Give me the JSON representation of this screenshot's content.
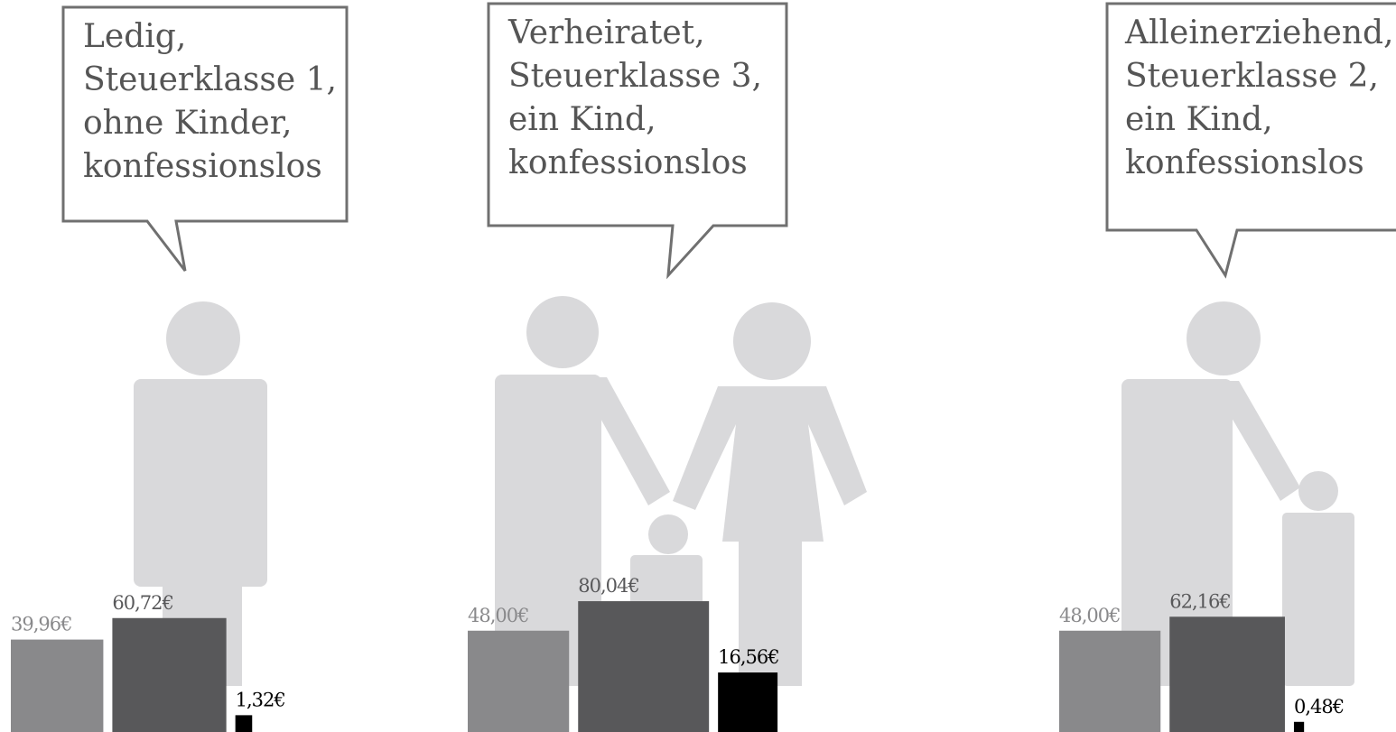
{
  "chart_data": [
    {
      "type": "bar",
      "title": [
        "Ledig,",
        "Steuerklasse 1,",
        "ohne Kinder,",
        "konfessionslos"
      ],
      "categories": [
        null,
        null,
        null
      ],
      "values": [
        39.96,
        60.72,
        1.32
      ],
      "value_labels": [
        "39,96€",
        "60,72€",
        "1,32€"
      ],
      "colors": [
        "#89898b",
        "#58585a",
        "#000000"
      ]
    },
    {
      "type": "bar",
      "title": [
        "Verheiratet,",
        "Steuerklasse 3,",
        "ein Kind,",
        "konfessionslos"
      ],
      "categories": [
        null,
        null,
        null
      ],
      "values": [
        48.0,
        80.04,
        16.56
      ],
      "value_labels": [
        "48,00€",
        "80,04€",
        "16,56€"
      ],
      "colors": [
        "#89898b",
        "#58585a",
        "#000000"
      ]
    },
    {
      "type": "bar",
      "title": [
        "Alleinerziehend,",
        "Steuerklasse 2,",
        "ein Kind,",
        "konfessionslos"
      ],
      "categories": [
        null,
        null,
        null
      ],
      "values": [
        48.0,
        62.16,
        0.48
      ],
      "value_labels": [
        "48,00€",
        "62,16€",
        "0,48€"
      ],
      "colors": [
        "#89898b",
        "#58585a",
        "#000000"
      ]
    }
  ]
}
